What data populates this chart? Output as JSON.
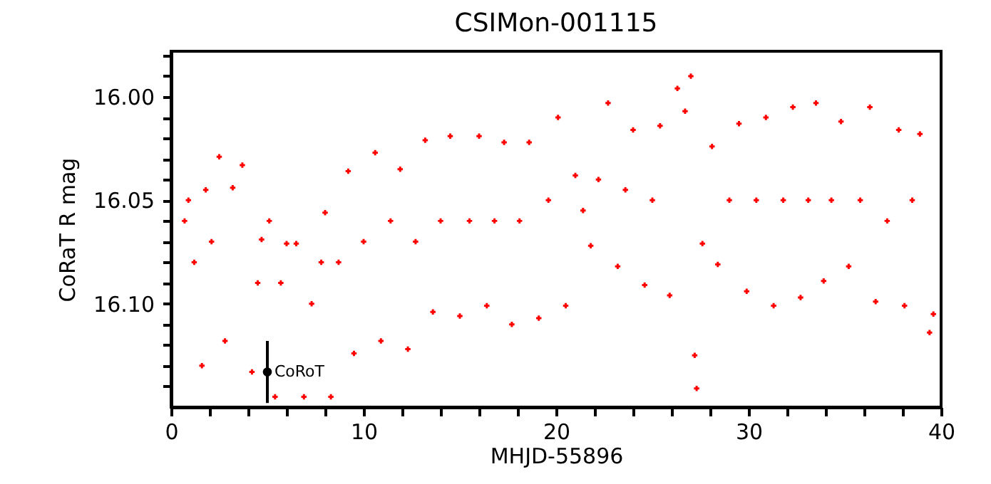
{
  "chart_data": {
    "type": "scatter",
    "title": "CSIMon-001115",
    "xlabel": "MHJD-55896",
    "ylabel": "CoRaT R mag",
    "xlim": [
      0,
      40
    ],
    "ylim": [
      16.15,
      15.978
    ],
    "xticks": [
      0,
      {
        "value": 2,
        "label": null
      },
      {
        "value": 4,
        "label": null
      },
      {
        "value": 6,
        "label": null
      },
      {
        "value": 8,
        "label": null
      },
      10,
      {
        "value": 12,
        "label": null
      },
      {
        "value": 14,
        "label": null
      },
      {
        "value": 16,
        "label": null
      },
      {
        "value": 18,
        "label": null
      },
      20,
      {
        "value": 22,
        "label": null
      },
      {
        "value": 24,
        "label": null
      },
      {
        "value": 26,
        "label": null
      },
      {
        "value": 28,
        "label": null
      },
      30,
      {
        "value": 32,
        "label": null
      },
      {
        "value": 34,
        "label": null
      },
      {
        "value": 36,
        "label": null
      },
      {
        "value": 38,
        "label": null
      },
      40
    ],
    "yticks": [
      {
        "value": 15.98,
        "label": null
      },
      {
        "value": 15.99,
        "label": null
      },
      {
        "value": 16,
        "label": "16.00"
      },
      {
        "value": 16.01,
        "label": null
      },
      {
        "value": 16.02,
        "label": null
      },
      {
        "value": 16.03,
        "label": null
      },
      {
        "value": 16.04,
        "label": null
      },
      {
        "value": 16.05,
        "label": "16.05"
      },
      {
        "value": 16.06,
        "label": null
      },
      {
        "value": 16.07,
        "label": null
      },
      {
        "value": 16.08,
        "label": null
      },
      {
        "value": 16.09,
        "label": null
      },
      {
        "value": 16.1,
        "label": "16.10"
      },
      {
        "value": 16.11,
        "label": null
      },
      {
        "value": 16.12,
        "label": null
      },
      {
        "value": 16.13,
        "label": null
      },
      {
        "value": 16.14,
        "label": null
      }
    ],
    "grid": false,
    "marker": "cross",
    "series": [
      {
        "color": "#ff0000",
        "x": [
          0.7,
          0.9,
          1.2,
          1.6,
          1.8,
          2.1,
          2.5,
          2.8,
          3.2,
          3.7,
          4.2,
          4.5,
          4.7,
          5.1,
          5.4,
          5.7,
          6.0,
          6.5,
          6.9,
          7.3,
          7.8,
          8.0,
          8.3,
          8.7,
          9.2,
          9.5,
          10.0,
          10.6,
          10.9,
          11.4,
          11.9,
          12.3,
          12.7,
          13.2,
          13.6,
          14.0,
          14.5,
          15.0,
          15.5,
          16.0,
          16.4,
          16.8,
          17.3,
          17.7,
          18.1,
          18.6,
          19.1,
          19.6,
          20.1,
          20.5,
          21.0,
          21.4,
          21.8,
          22.2,
          22.7,
          23.2,
          23.6,
          24.0,
          24.6,
          25.0,
          25.4,
          25.9,
          26.3,
          26.7,
          27.0,
          27.2,
          27.3,
          27.6,
          28.1,
          28.4,
          29.0,
          29.5,
          29.9,
          30.4,
          30.9,
          31.3,
          31.8,
          32.3,
          32.7,
          33.1,
          33.5,
          33.9,
          34.3,
          34.8,
          35.2,
          35.8,
          36.3,
          36.6,
          37.2,
          37.8,
          38.1,
          38.5,
          38.9,
          39.4,
          39.6
        ],
        "values": [
          16.06,
          16.05,
          16.08,
          16.13,
          16.045,
          16.07,
          16.029,
          16.118,
          16.044,
          16.033,
          16.133,
          16.09,
          16.069,
          16.06,
          16.145,
          16.09,
          16.071,
          16.071,
          16.145,
          16.1,
          16.08,
          16.056,
          16.145,
          16.08,
          16.036,
          16.124,
          16.07,
          16.027,
          16.118,
          16.06,
          16.035,
          16.122,
          16.07,
          16.021,
          16.104,
          16.06,
          16.019,
          16.106,
          16.06,
          16.019,
          16.101,
          16.06,
          16.022,
          16.11,
          16.06,
          16.022,
          16.107,
          16.05,
          16.01,
          16.101,
          16.038,
          16.055,
          16.072,
          16.04,
          16.003,
          16.082,
          16.045,
          16.016,
          16.091,
          16.05,
          16.014,
          16.096,
          15.996,
          16.007,
          15.99,
          16.125,
          16.141,
          16.071,
          16.024,
          16.081,
          16.05,
          16.013,
          16.094,
          16.05,
          16.01,
          16.101,
          16.05,
          16.005,
          16.097,
          16.05,
          16.003,
          16.089,
          16.05,
          16.012,
          16.082,
          16.05,
          16.005,
          16.099,
          16.06,
          16.016,
          16.101,
          16.05,
          16.018,
          16.114,
          16.105
        ]
      },
      {
        "name": "CoRoT",
        "color": "#000000",
        "marker": "circle",
        "x": [
          5
        ],
        "values": [
          16.133
        ],
        "errors": [
          0.015
        ]
      }
    ]
  }
}
